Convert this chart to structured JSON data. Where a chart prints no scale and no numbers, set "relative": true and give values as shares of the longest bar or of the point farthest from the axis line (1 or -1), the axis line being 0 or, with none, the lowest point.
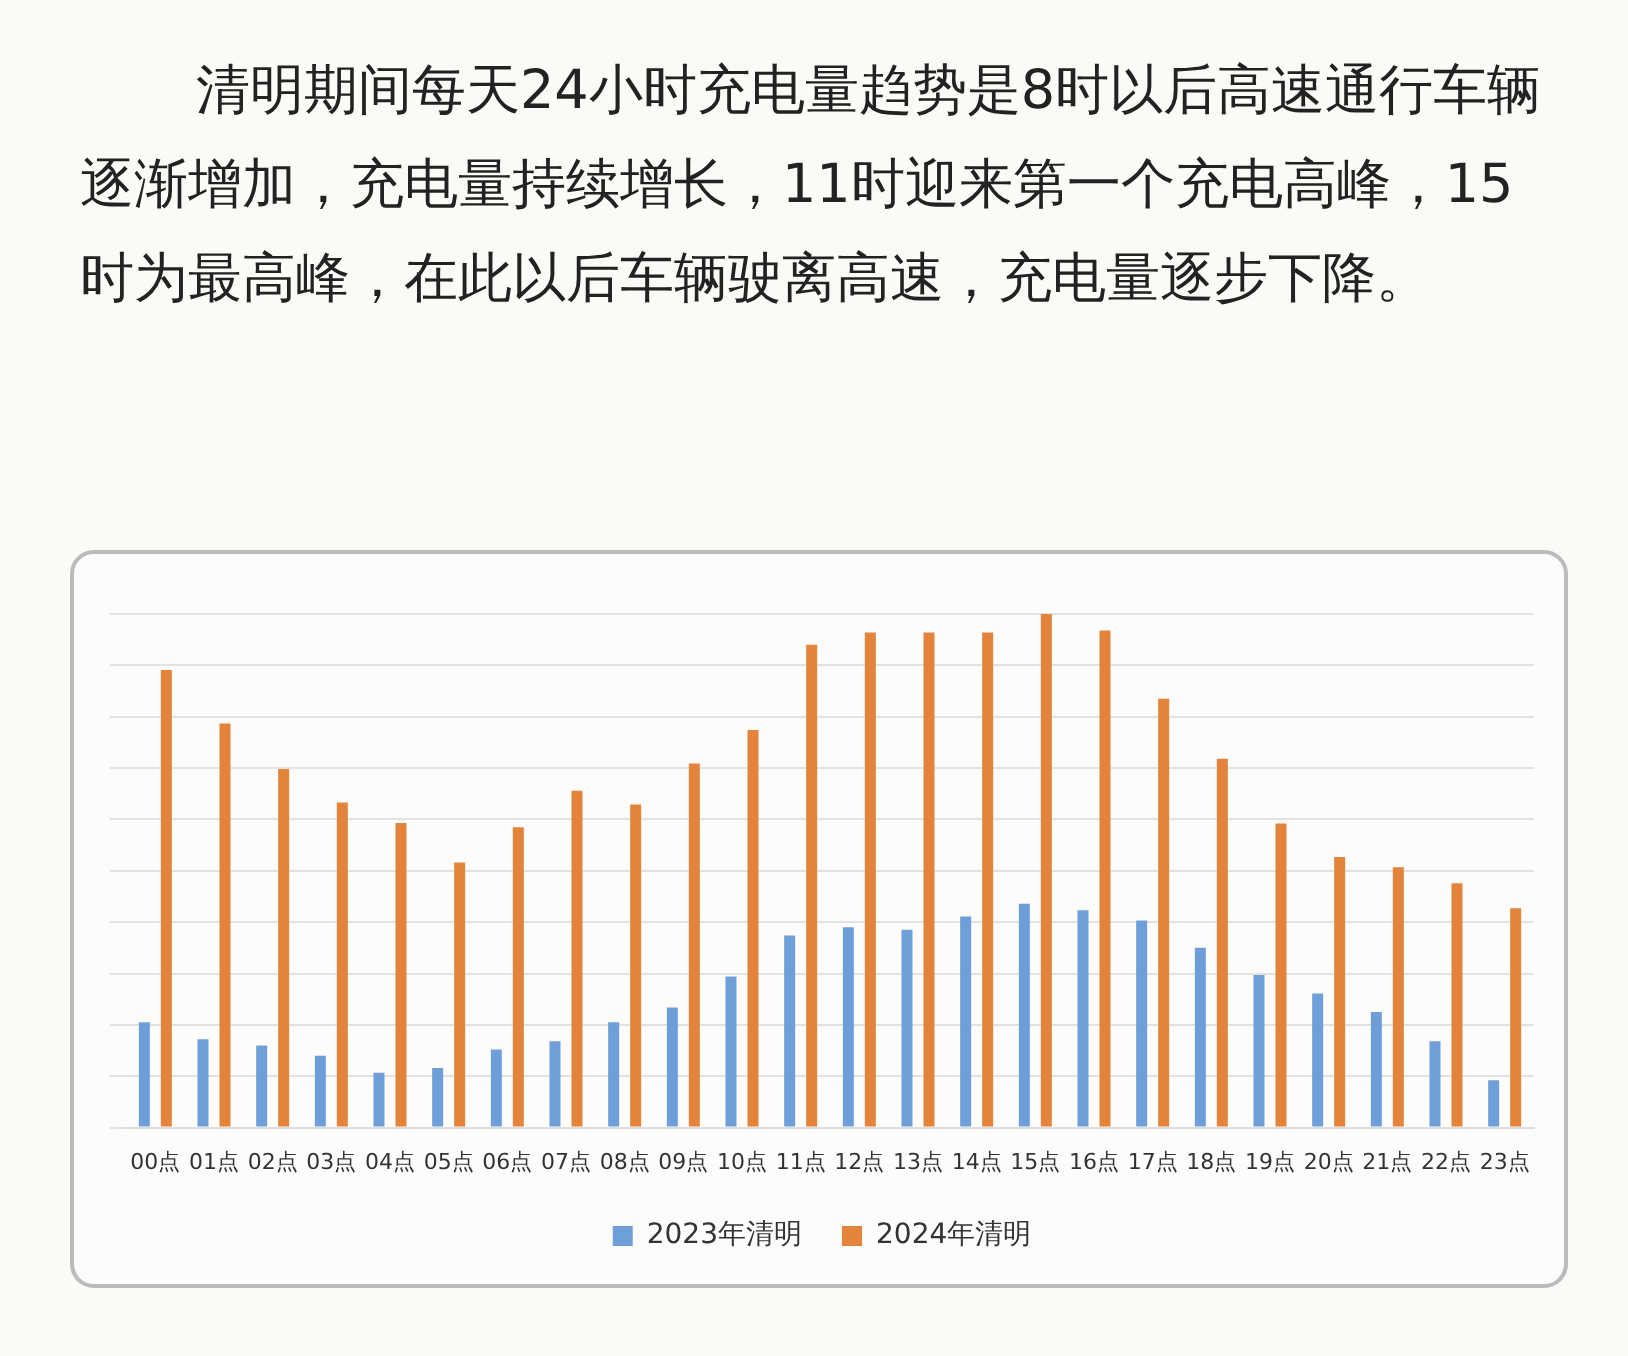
{
  "chart_data": {
    "type": "bar",
    "title": "清明期间每天24小时充电量趋势是8时以后高速通行车辆逐渐增加，充电量持续增长，11时迎来第一个充电高峰，15时为最高峰，在此以后车辆驶离高速，充电量逐步下降。",
    "categories": [
      "00点",
      "01点",
      "02点",
      "03点",
      "04点",
      "05点",
      "06点",
      "07点",
      "08点",
      "09点",
      "10点",
      "11点",
      "12点",
      "13点",
      "14点",
      "15点",
      "16点",
      "17点",
      "18点",
      "19点",
      "20点",
      "21点",
      "22点",
      "23点"
    ],
    "series": [
      {
        "name": "2023年清明",
        "color": "#6f9fd8",
        "values": [
          0.205,
          0.172,
          0.16,
          0.14,
          0.107,
          0.116,
          0.152,
          0.168,
          0.205,
          0.234,
          0.294,
          0.374,
          0.39,
          0.385,
          0.411,
          0.436,
          0.423,
          0.403,
          0.35,
          0.297,
          0.261,
          0.225,
          0.168,
          0.092
        ]
      },
      {
        "name": "2024年清明",
        "color": "#e3843a",
        "values": [
          0.891,
          0.787,
          0.698,
          0.633,
          0.593,
          0.516,
          0.585,
          0.656,
          0.629,
          0.709,
          0.774,
          0.94,
          0.964,
          0.964,
          0.964,
          1,
          0.968,
          0.835,
          0.718,
          0.592,
          0.527,
          0.507,
          0.476,
          0.427
        ]
      }
    ],
    "relative": true,
    "grid": "y",
    "legend": "bottom"
  }
}
